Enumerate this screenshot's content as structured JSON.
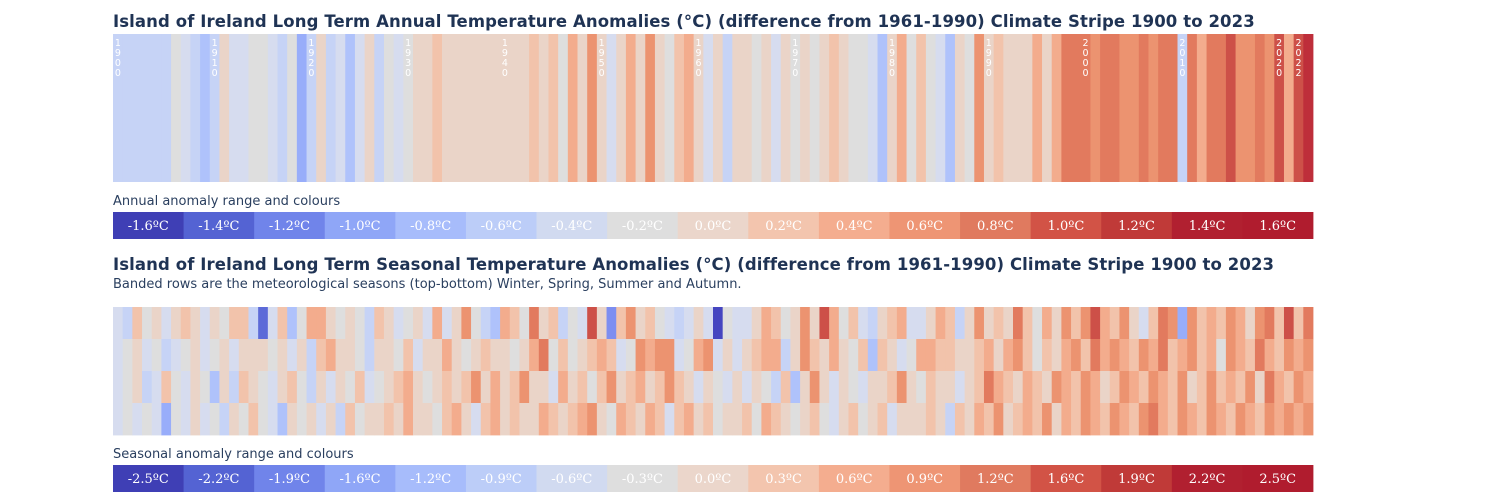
{
  "annual": {
    "title": "Island of Ireland Long Term Annual Temperature Anomalies (°C) (difference from 1961-1990) Climate Stripe 1900 to 2023",
    "legend_label": "Annual anomaly range and colours"
  },
  "seasonal": {
    "title": "Island of Ireland Long Term Seasonal Temperature Anomalies (°C) (difference from 1961-1990) Climate Stripe 1900 to 2023",
    "subtitle": "Banded rows are the meteorological seasons (top-bottom) Winter, Spring, Summer and Autumn.",
    "legend_label": "Seasonal anomaly range and colours"
  },
  "colors": {
    "scale": [
      "#4545c0",
      "#5c6ad8",
      "#7d8ef0",
      "#98adfa",
      "#afc2fb",
      "#c6d3f6",
      "#d6dcef",
      "#dedede",
      "#ead4c8",
      "#f2c3ab",
      "#f3ac8d",
      "#ec9370",
      "#e27a5e",
      "#cd5048",
      "#be2e3a",
      "#b01c2e"
    ]
  },
  "chart_data": [
    {
      "type": "heatmap",
      "name": "annual",
      "start_year": 1900,
      "end_year": 2023,
      "year_labels": [
        "1900",
        "1910",
        "1920",
        "1930",
        "1940",
        "1950",
        "1960",
        "1970",
        "1980",
        "1990",
        "2000",
        "2010",
        "2020",
        "2022"
      ],
      "legend": [
        "-1.6ºC",
        "-1.4ºC",
        "-1.2ºC",
        "-1.0ºC",
        "-0.8ºC",
        "-0.6ºC",
        "-0.4ºC",
        "-0.2ºC",
        "0.0ºC",
        "0.2ºC",
        "0.4ºC",
        "0.6ºC",
        "0.8ºC",
        "1.0ºC",
        "1.2ºC",
        "1.4ºC",
        "1.6ºC"
      ],
      "values": [
        -0.6,
        -0.6,
        -0.6,
        -0.6,
        -0.6,
        -0.6,
        -0.2,
        -0.4,
        -0.6,
        -0.8,
        -0.6,
        0.2,
        -0.4,
        -0.4,
        -0.2,
        -0.2,
        -0.4,
        -0.6,
        -0.2,
        -1.0,
        -0.6,
        0.2,
        -0.6,
        -0.4,
        -0.8,
        -0.4,
        0.2,
        -0.6,
        -0.2,
        -0.4,
        -0.2,
        0.0,
        0.0,
        0.4,
        0.2,
        0.0,
        0.0,
        0.0,
        0.2,
        0.2,
        0.0,
        0.0,
        0.0,
        0.4,
        0.2,
        0.4,
        -0.2,
        0.6,
        0.2,
        0.8,
        0.0,
        -0.4,
        0.2,
        0.6,
        0.0,
        0.8,
        0.0,
        -0.2,
        0.4,
        0.6,
        0.0,
        -0.4,
        0.2,
        -0.6,
        0.2,
        0.0,
        -0.2,
        0.2,
        -0.4,
        0.2,
        -0.2,
        0.0,
        -0.2,
        0.2,
        0.4,
        0.2,
        -0.2,
        -0.2,
        -0.4,
        -0.8,
        0.2,
        0.6,
        -0.2,
        0.4,
        -0.2,
        -0.4,
        -0.8,
        0.0,
        -0.2,
        0.8,
        0.2,
        0.4,
        0.2,
        0.0,
        0.0,
        0.6,
        0.0,
        0.6,
        1.0,
        1.0,
        1.0,
        0.8,
        1.0,
        1.0,
        0.8,
        0.8,
        1.0,
        0.8,
        1.0,
        1.0,
        -0.6,
        1.0,
        0.6,
        1.0,
        1.0,
        1.2,
        0.8,
        0.8,
        1.0,
        0.8,
        1.2,
        0.6,
        1.2,
        1.4
      ],
      "ylabel": "",
      "xlabel": ""
    },
    {
      "type": "heatmap",
      "name": "seasonal",
      "start_year": 1900,
      "end_year": 2023,
      "rows": 4,
      "legend": [
        "-2.5ºC",
        "-2.2ºC",
        "-1.9ºC",
        "-1.6ºC",
        "-1.2ºC",
        "-0.9ºC",
        "-0.6ºC",
        "-0.3ºC",
        "0.0ºC",
        "0.3ºC",
        "0.6ºC",
        "0.9ºC",
        "1.2ºC",
        "1.6ºC",
        "1.9ºC",
        "2.2ºC",
        "2.5ºC"
      ],
      "values": [
        [
          -0.6,
          -0.9,
          0.6,
          -0.3,
          0.3,
          -0.6,
          0.3,
          0.6,
          0.0,
          -0.6,
          0.3,
          -0.3,
          0.6,
          0.6,
          -0.9,
          -2.2,
          -0.6,
          0.6,
          -1.2,
          -0.3,
          0.9,
          0.9,
          0.3,
          -0.3,
          0.0,
          -0.3,
          -0.9,
          0.6,
          0.3,
          -0.6,
          -0.3,
          0.3,
          -0.6,
          0.9,
          -0.6,
          0.3,
          1.2,
          -0.3,
          -0.9,
          -1.2,
          0.9,
          0.6,
          -0.3,
          1.6,
          0.0,
          0.6,
          -0.9,
          -0.3,
          -0.6,
          1.9,
          0.3,
          -1.9,
          0.6,
          1.2,
          0.3,
          0.6,
          -0.3,
          -0.6,
          -0.9,
          -0.6,
          0.3,
          -0.6,
          -2.5,
          -0.3,
          -0.6,
          -0.6,
          0.3,
          0.9,
          0.6,
          -0.3,
          0.3,
          1.2,
          0.3,
          1.9,
          0.9,
          -0.3,
          0.6,
          -0.6,
          -0.9,
          0.3,
          0.6,
          0.9,
          -0.6,
          -0.6,
          0.0,
          0.9,
          0.6,
          -0.9,
          0.3,
          1.2,
          0.0,
          0.6,
          0.3,
          1.6,
          0.6,
          -0.3,
          0.9,
          0.3,
          1.2,
          0.6,
          1.2,
          1.9,
          0.9,
          0.6,
          1.2,
          0.3,
          -0.6,
          0.6,
          1.6,
          1.2,
          -1.6,
          1.2,
          0.6,
          0.9,
          0.6,
          1.2,
          0.9,
          0.3,
          1.2,
          1.6,
          0.6,
          1.9,
          0.6,
          1.6
        ],
        [
          -0.6,
          -0.3,
          0.0,
          -0.6,
          -0.3,
          -0.9,
          -0.6,
          -0.3,
          0.3,
          -0.6,
          -0.3,
          0.3,
          -0.6,
          0.3,
          0.3,
          0.0,
          -0.3,
          0.3,
          -0.6,
          0.0,
          -0.9,
          0.6,
          0.9,
          0.3,
          0.3,
          -0.3,
          -0.9,
          0.3,
          0.3,
          -0.3,
          0.6,
          -0.6,
          0.3,
          0.0,
          0.9,
          0.0,
          -0.3,
          0.0,
          0.6,
          0.3,
          0.3,
          -0.3,
          0.0,
          0.9,
          1.6,
          -0.3,
          0.6,
          -0.3,
          0.0,
          0.6,
          0.9,
          0.6,
          -0.6,
          -0.3,
          1.2,
          0.9,
          1.2,
          1.2,
          -0.6,
          -0.3,
          0.9,
          1.2,
          -0.6,
          0.3,
          -0.6,
          0.0,
          0.6,
          0.9,
          0.9,
          -0.9,
          0.3,
          1.2,
          0.6,
          0.3,
          0.9,
          0.3,
          -0.3,
          0.6,
          -1.2,
          0.6,
          0.3,
          -0.6,
          -0.3,
          0.9,
          0.9,
          0.6,
          0.6,
          0.0,
          0.3,
          0.6,
          0.9,
          0.3,
          0.9,
          1.2,
          0.6,
          -0.3,
          0.6,
          0.3,
          0.9,
          1.2,
          0.6,
          1.6,
          0.9,
          1.2,
          0.9,
          0.6,
          1.2,
          0.9,
          1.6,
          0.6,
          0.9,
          1.2,
          0.6,
          0.9,
          -0.3,
          1.2,
          0.9,
          0.6,
          1.6,
          0.9,
          0.6,
          1.2,
          0.9,
          1.2
        ],
        [
          -0.6,
          -0.3,
          0.3,
          -0.9,
          -0.6,
          0.6,
          -0.3,
          -0.6,
          0.3,
          -0.3,
          -1.2,
          0.3,
          -0.9,
          0.6,
          0.3,
          -0.3,
          -0.6,
          0.0,
          0.6,
          -0.3,
          -0.9,
          0.3,
          -0.6,
          0.3,
          -0.3,
          0.6,
          -0.6,
          -0.3,
          0.3,
          0.6,
          0.9,
          0.3,
          -0.3,
          0.0,
          0.6,
          0.3,
          0.6,
          1.2,
          0.3,
          0.9,
          0.0,
          0.6,
          1.2,
          0.3,
          0.0,
          -0.6,
          0.9,
          0.3,
          0.6,
          -0.3,
          0.6,
          1.2,
          0.3,
          0.6,
          0.9,
          0.3,
          0.6,
          1.2,
          0.6,
          0.3,
          -0.6,
          0.3,
          -0.3,
          -0.6,
          0.3,
          -0.6,
          0.0,
          -0.3,
          -0.9,
          0.6,
          -1.2,
          0.3,
          1.2,
          0.3,
          -0.6,
          0.3,
          -0.3,
          -0.6,
          0.0,
          0.3,
          0.6,
          1.2,
          0.3,
          -0.3,
          0.6,
          0.3,
          0.0,
          -0.6,
          0.3,
          0.6,
          1.6,
          0.9,
          0.6,
          0.3,
          0.9,
          0.6,
          0.3,
          1.2,
          0.9,
          0.6,
          1.2,
          0.9,
          0.3,
          0.6,
          1.2,
          0.9,
          0.6,
          1.2,
          0.9,
          0.6,
          1.2,
          0.3,
          0.6,
          1.2,
          0.6,
          0.9,
          0.6,
          1.2,
          0.3,
          1.6,
          0.9,
          0.6,
          1.2,
          0.9
        ],
        [
          -0.6,
          -0.3,
          -0.6,
          -0.3,
          -0.6,
          -1.6,
          -0.3,
          -0.6,
          0.3,
          -0.6,
          -0.3,
          -0.9,
          0.3,
          -0.3,
          0.6,
          -0.3,
          -0.6,
          -1.2,
          0.3,
          -0.3,
          0.0,
          -0.6,
          0.3,
          -0.9,
          0.6,
          -0.3,
          0.3,
          0.3,
          0.6,
          0.3,
          0.9,
          0.3,
          0.0,
          -0.3,
          0.6,
          0.9,
          0.3,
          -0.6,
          0.6,
          0.9,
          0.3,
          0.6,
          0.0,
          0.3,
          0.9,
          0.6,
          0.3,
          0.6,
          0.9,
          1.2,
          0.3,
          -0.3,
          0.9,
          0.6,
          0.3,
          0.9,
          0.6,
          -0.6,
          0.6,
          0.9,
          0.3,
          0.6,
          -0.3,
          0.0,
          0.3,
          0.6,
          -0.3,
          0.9,
          0.6,
          0.3,
          -0.3,
          0.3,
          0.6,
          -0.3,
          -0.6,
          0.3,
          0.6,
          -0.3,
          0.3,
          0.6,
          -0.6,
          0.3,
          0.0,
          0.3,
          0.6,
          0.3,
          -0.9,
          0.6,
          0.3,
          0.9,
          0.6,
          1.2,
          0.3,
          0.6,
          0.9,
          0.6,
          1.2,
          0.3,
          0.9,
          0.6,
          1.2,
          0.9,
          0.6,
          1.2,
          0.9,
          0.6,
          1.2,
          1.6,
          0.9,
          0.6,
          1.2,
          0.9,
          0.6,
          1.2,
          0.9,
          0.6,
          1.2,
          0.9,
          0.6,
          1.2,
          0.9,
          1.2,
          0.9,
          1.2
        ]
      ],
      "ylabel": "",
      "xlabel": ""
    }
  ]
}
